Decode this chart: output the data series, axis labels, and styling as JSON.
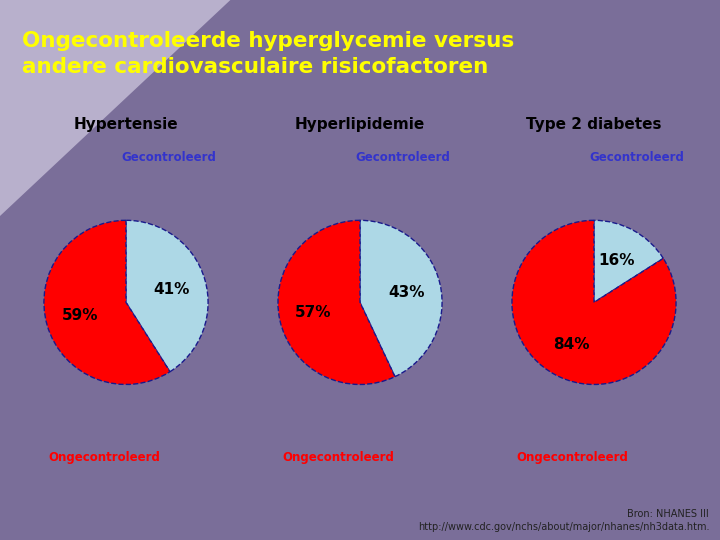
{
  "title": "Ongecontroleerde hyperglycemie versus\nandere cardiovasculaire risicofactoren",
  "title_color": "#FFFF00",
  "bg_light": "#B8B0CC",
  "bg_dark": "#7A6E99",
  "pie_charts": [
    {
      "title": "Hypertensie",
      "controlled_pct": 41,
      "uncontrolled_pct": 59
    },
    {
      "title": "Hyperlipidemie",
      "controlled_pct": 43,
      "uncontrolled_pct": 57
    },
    {
      "title": "Type 2 diabetes",
      "controlled_pct": 16,
      "uncontrolled_pct": 84
    }
  ],
  "color_controlled": "#ADD8E6",
  "color_uncontrolled": "#FF0000",
  "pie_edge_color": "#1A1A8C",
  "controlled_label": "Gecontroleerd",
  "controlled_label_color": "#3333CC",
  "uncontrolled_label": "Ongecontroleerd",
  "uncontrolled_label_color": "#FF0000",
  "source_text": "Bron: NHANES III\nhttp://www.cdc.gov/nchs/about/major/nhanes/nh3data.htm.",
  "source_color": "#222222",
  "source_fontsize": 7
}
